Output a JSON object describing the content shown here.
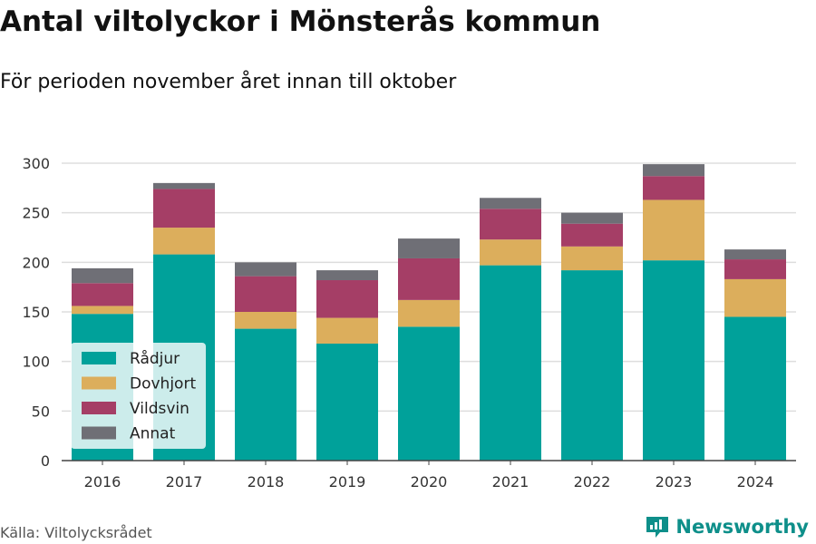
{
  "title": "Antal viltolyckor i Mönsterås kommun",
  "subtitle": "För perioden november året innan till oktober",
  "source": "Källa: Viltolycksrådet",
  "brand": {
    "name": "Newsworthy",
    "icon": "newsworthy-logo-icon"
  },
  "chart_data": {
    "type": "bar",
    "stacked": true,
    "categories": [
      "2016",
      "2017",
      "2018",
      "2019",
      "2020",
      "2021",
      "2022",
      "2023",
      "2024"
    ],
    "series": [
      {
        "name": "Rådjur",
        "color": "#00a19a",
        "values": [
          148,
          208,
          133,
          118,
          135,
          197,
          192,
          202,
          145
        ]
      },
      {
        "name": "Dovhjort",
        "color": "#dcae5c",
        "values": [
          8,
          27,
          17,
          26,
          27,
          26,
          24,
          61,
          38
        ]
      },
      {
        "name": "Vildsvin",
        "color": "#a53e66",
        "values": [
          23,
          39,
          36,
          38,
          42,
          31,
          23,
          24,
          20
        ]
      },
      {
        "name": "Annat",
        "color": "#6f6f76",
        "values": [
          15,
          6,
          14,
          10,
          20,
          11,
          11,
          12,
          10
        ]
      }
    ],
    "ylim": [
      0,
      300
    ],
    "yticks": [
      0,
      50,
      100,
      150,
      200,
      250,
      300
    ],
    "grid": true,
    "legend": "bottom-left",
    "xlabel": "",
    "ylabel": ""
  }
}
